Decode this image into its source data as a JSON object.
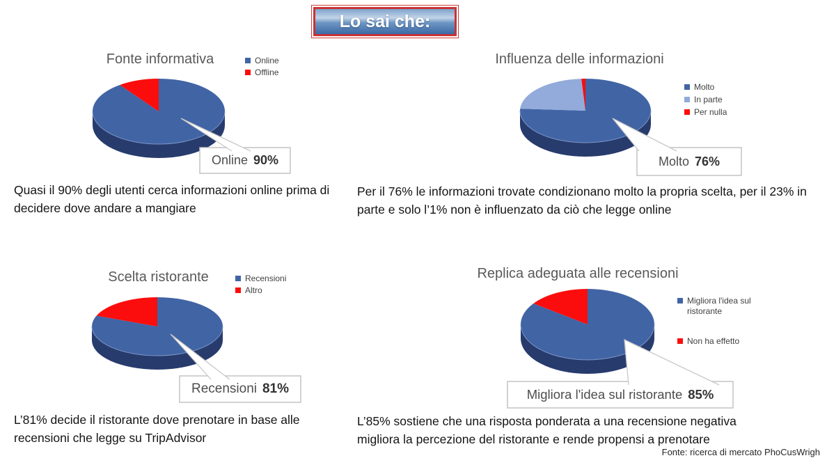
{
  "banner": {
    "text": "Lo sai che:"
  },
  "footer": {
    "text": "Fonte: ricerca di mercato PhoCusWrigh"
  },
  "colors": {
    "pie_blue": "#4164A5",
    "pie_blue_side": "#273B6D",
    "pie_light_blue": "#92ABDB",
    "pie_red": "#FB0D0D",
    "title_gray": "#595959",
    "banner_border_red": "#D03A3A"
  },
  "chart_data": [
    {
      "type": "pie",
      "title": "Fonte informativa",
      "series": [
        {
          "label": "Online",
          "value": 90,
          "color": "#4164A5"
        },
        {
          "label": "Offline",
          "value": 10,
          "color": "#FB0D0D"
        }
      ],
      "side_color": "#273B6D",
      "legend_position": "right",
      "callout": {
        "label": "Online",
        "value": "90%"
      },
      "caption": "Quasi il 90% degli utenti cerca informazioni online prima di decidere dove andare a mangiare"
    },
    {
      "type": "pie",
      "title": "Influenza delle informazioni",
      "series": [
        {
          "label": "Molto",
          "value": 76,
          "color": "#4164A5"
        },
        {
          "label": "In parte",
          "value": 23,
          "color": "#92ABDB"
        },
        {
          "label": "Per nulla",
          "value": 1,
          "color": "#FB0D0D"
        }
      ],
      "side_color": "#273B6D",
      "legend_position": "right",
      "callout": {
        "label": "Molto",
        "value": "76%"
      },
      "caption": "Per il 76% le informazioni trovate condizionano molto la propria scelta, per il 23% in parte e solo l’1% non è influenzato da ciò che legge online"
    },
    {
      "type": "pie",
      "title": "Scelta ristorante",
      "series": [
        {
          "label": "Recensioni",
          "value": 81,
          "color": "#4164A5"
        },
        {
          "label": "Altro",
          "value": 19,
          "color": "#FB0D0D"
        }
      ],
      "side_color": "#273B6D",
      "legend_position": "right",
      "callout": {
        "label": "Recensioni",
        "value": "81%"
      },
      "caption": "L’81% decide il ristorante dove prenotare in base alle recensioni che legge su TripAdvisor"
    },
    {
      "type": "pie",
      "title": "Replica adeguata alle recensioni",
      "series": [
        {
          "label": "Migliora l'idea sul ristorante",
          "value": 85,
          "color": "#4164A5"
        },
        {
          "label": "Non ha effetto",
          "value": 15,
          "color": "#FB0D0D"
        }
      ],
      "side_color": "#273B6D",
      "legend_position": "right",
      "callout": {
        "label": "Migliora l'idea sul ristorante",
        "value": "85%"
      },
      "caption": "L’85% sostiene che una risposta ponderata a una recensione negativa migliora la percezione del ristorante e rende propensi a prenotare"
    }
  ]
}
